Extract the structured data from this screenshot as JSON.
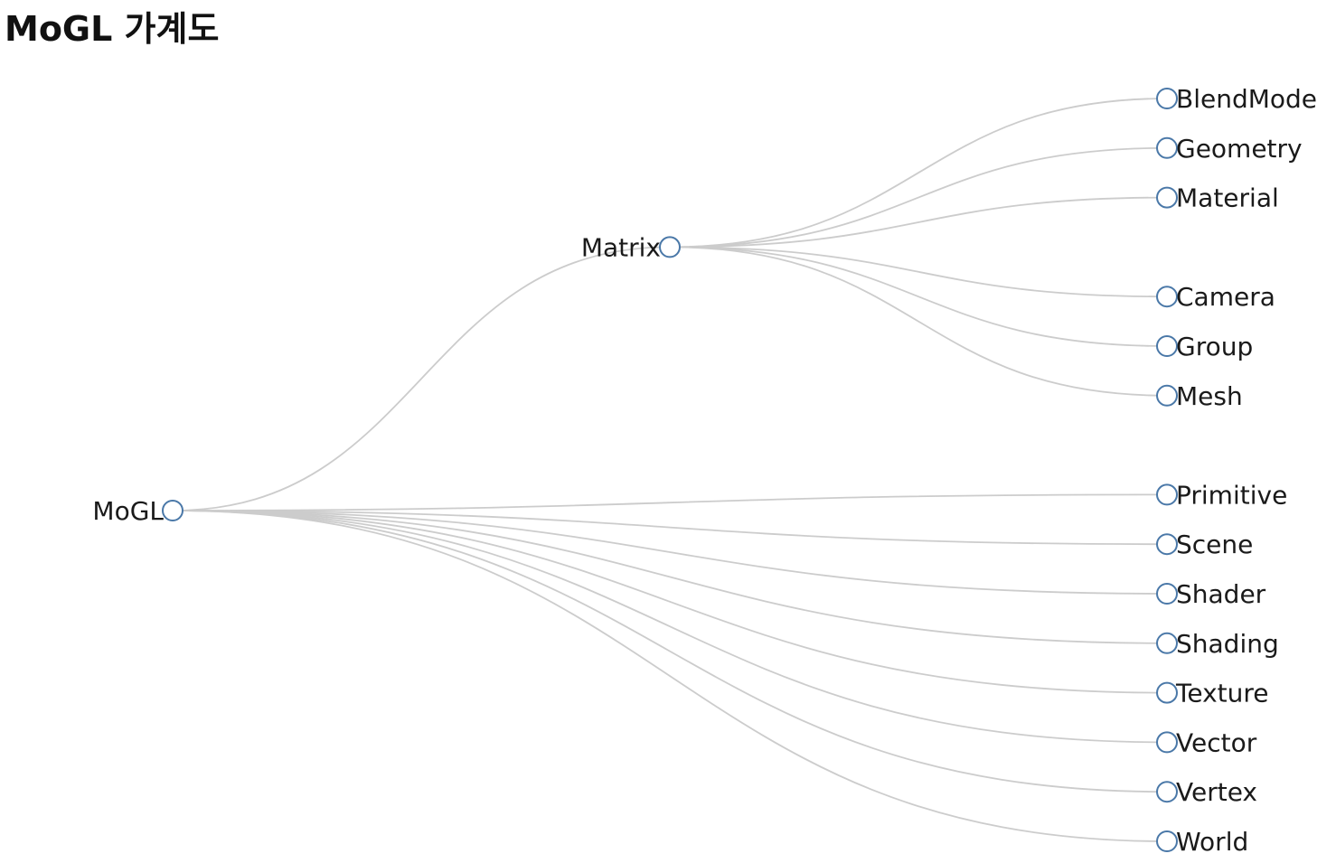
{
  "page": {
    "title": "MoGL 가계도"
  },
  "tree": {
    "root": {
      "name": "MoGL",
      "children": [
        {
          "name": "Matrix",
          "children": [
            {
              "name": "BlendMode"
            },
            {
              "name": "Geometry"
            },
            {
              "name": "Material"
            },
            {
              "name": "Camera"
            },
            {
              "name": "Group"
            },
            {
              "name": "Mesh"
            }
          ]
        },
        {
          "name": "Primitive"
        },
        {
          "name": "Scene"
        },
        {
          "name": "Shader"
        },
        {
          "name": "Shading"
        },
        {
          "name": "Texture"
        },
        {
          "name": "Vector"
        },
        {
          "name": "Vertex"
        },
        {
          "name": "World"
        }
      ]
    }
  },
  "colors": {
    "link": "#cccccc",
    "node_stroke": "#4a78a8",
    "node_fill": "#ffffff",
    "label": "#1a1a1a"
  }
}
